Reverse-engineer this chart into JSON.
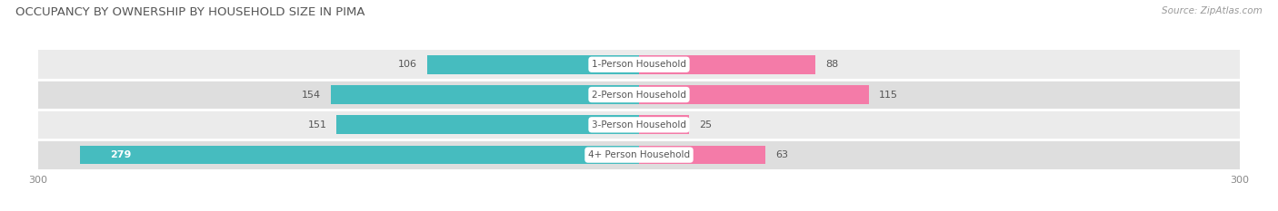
{
  "title": "OCCUPANCY BY OWNERSHIP BY HOUSEHOLD SIZE IN PIMA",
  "source": "Source: ZipAtlas.com",
  "categories": [
    "1-Person Household",
    "2-Person Household",
    "3-Person Household",
    "4+ Person Household"
  ],
  "owner_values": [
    106,
    154,
    151,
    279
  ],
  "renter_values": [
    88,
    115,
    25,
    63
  ],
  "owner_color": "#46BCBF",
  "renter_color": "#F47BA8",
  "row_colors": [
    "#EBEBEB",
    "#E0E0E0",
    "#EBEBEB",
    "#E0E0E0"
  ],
  "axis_max": 300,
  "axis_min": -300,
  "title_fontsize": 9.5,
  "source_fontsize": 7.5,
  "value_fontsize": 8,
  "label_fontsize": 7.5,
  "tick_fontsize": 8,
  "bar_height": 0.62
}
